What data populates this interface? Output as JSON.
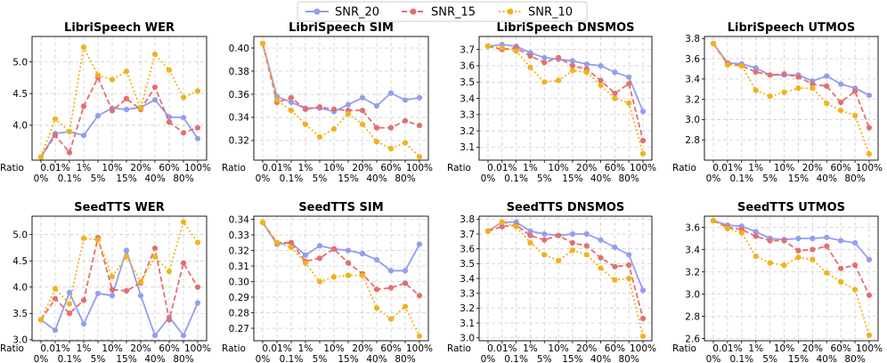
{
  "legend": [
    {
      "name": "SNR_20",
      "color": "#949df0",
      "dash": "solid"
    },
    {
      "name": "SNR_15",
      "color": "#e36f6f",
      "dash": "dashed"
    },
    {
      "name": "SNR_10",
      "color": "#f2b21a",
      "dash": "dotted"
    }
  ],
  "x_categories": [
    "0%",
    "0.01%",
    "0.1%",
    "1%",
    "5%",
    "10%",
    "15%",
    "20%",
    "40%",
    "60%",
    "80%",
    "100%"
  ],
  "x_axis_label": "Ratio",
  "chart_data": [
    {
      "type": "line",
      "title": "LibriSpeech WER",
      "ylim": [
        3.45,
        5.4
      ],
      "yticks": [
        4.0,
        4.5,
        5.0
      ],
      "ytick_labels": [
        "4.0",
        "4.5",
        "5.0"
      ],
      "series": [
        {
          "name": "SNR_20",
          "values": [
            3.5,
            3.87,
            3.9,
            3.84,
            4.15,
            4.27,
            4.25,
            4.28,
            4.4,
            4.13,
            4.12,
            3.79
          ]
        },
        {
          "name": "SNR_15",
          "values": [
            3.5,
            3.84,
            3.57,
            4.3,
            4.75,
            4.23,
            4.42,
            4.25,
            4.6,
            4.05,
            3.88,
            3.96
          ]
        },
        {
          "name": "SNR_10",
          "values": [
            3.5,
            4.1,
            3.9,
            5.23,
            4.79,
            4.72,
            4.85,
            4.27,
            5.12,
            4.87,
            4.44,
            4.54
          ]
        }
      ]
    },
    {
      "type": "line",
      "title": "LibriSpeech SIM",
      "ylim": [
        0.303,
        0.41
      ],
      "yticks": [
        0.32,
        0.34,
        0.36,
        0.38,
        0.4
      ],
      "ytick_labels": [
        "0.32",
        "0.34",
        "0.36",
        "0.38",
        "0.40"
      ],
      "series": [
        {
          "name": "SNR_20",
          "values": [
            0.404,
            0.358,
            0.353,
            0.348,
            0.348,
            0.345,
            0.351,
            0.357,
            0.35,
            0.361,
            0.355,
            0.357
          ]
        },
        {
          "name": "SNR_15",
          "values": [
            0.404,
            0.353,
            0.357,
            0.347,
            0.349,
            0.347,
            0.346,
            0.346,
            0.331,
            0.331,
            0.337,
            0.333
          ]
        },
        {
          "name": "SNR_10",
          "values": [
            0.404,
            0.355,
            0.346,
            0.334,
            0.323,
            0.33,
            0.343,
            0.334,
            0.319,
            0.313,
            0.318,
            0.306
          ]
        }
      ]
    },
    {
      "type": "line",
      "title": "LibriSpeech DNSMOS",
      "ylim": [
        3.02,
        3.78
      ],
      "yticks": [
        3.1,
        3.2,
        3.3,
        3.4,
        3.5,
        3.6,
        3.7
      ],
      "ytick_labels": [
        "3.1",
        "3.2",
        "3.3",
        "3.4",
        "3.5",
        "3.6",
        "3.7"
      ],
      "series": [
        {
          "name": "SNR_20",
          "values": [
            3.72,
            3.73,
            3.72,
            3.68,
            3.65,
            3.64,
            3.63,
            3.61,
            3.6,
            3.56,
            3.53,
            3.32
          ]
        },
        {
          "name": "SNR_15",
          "values": [
            3.72,
            3.7,
            3.71,
            3.66,
            3.62,
            3.65,
            3.6,
            3.58,
            3.51,
            3.43,
            3.49,
            3.14
          ]
        },
        {
          "name": "SNR_10",
          "values": [
            3.72,
            3.71,
            3.69,
            3.59,
            3.5,
            3.51,
            3.57,
            3.56,
            3.48,
            3.4,
            3.37,
            3.06
          ]
        }
      ]
    },
    {
      "type": "line",
      "title": "LibriSpeech UTMOS",
      "ylim": [
        2.6,
        3.82
      ],
      "yticks": [
        2.8,
        3.0,
        3.2,
        3.4,
        3.6,
        3.8
      ],
      "ytick_labels": [
        "2.8",
        "3.0",
        "3.2",
        "3.4",
        "3.6",
        "3.8"
      ],
      "series": [
        {
          "name": "SNR_20",
          "values": [
            3.75,
            3.56,
            3.55,
            3.51,
            3.44,
            3.44,
            3.44,
            3.38,
            3.43,
            3.35,
            3.31,
            3.24
          ]
        },
        {
          "name": "SNR_15",
          "values": [
            3.75,
            3.55,
            3.53,
            3.47,
            3.44,
            3.45,
            3.42,
            3.35,
            3.33,
            3.17,
            3.28,
            2.92
          ]
        },
        {
          "name": "SNR_10",
          "values": [
            3.75,
            3.54,
            3.53,
            3.29,
            3.23,
            3.27,
            3.31,
            3.31,
            3.16,
            3.09,
            3.04,
            2.66
          ]
        }
      ]
    },
    {
      "type": "line",
      "title": "SeedTTS WER",
      "ylim": [
        2.98,
        5.35
      ],
      "yticks": [
        3.0,
        3.5,
        4.0,
        4.5,
        5.0
      ],
      "ytick_labels": [
        "3.0",
        "3.5",
        "4.0",
        "4.5",
        "5.0"
      ],
      "series": [
        {
          "name": "SNR_20",
          "values": [
            3.38,
            3.18,
            3.9,
            3.3,
            3.88,
            3.84,
            4.7,
            3.84,
            3.08,
            3.43,
            3.08,
            3.7
          ]
        },
        {
          "name": "SNR_15",
          "values": [
            3.38,
            3.78,
            3.5,
            3.75,
            4.94,
            3.95,
            3.93,
            4.08,
            4.74,
            3.38,
            4.46,
            4.0
          ]
        },
        {
          "name": "SNR_10",
          "values": [
            3.38,
            3.97,
            3.68,
            4.93,
            4.9,
            4.2,
            4.58,
            4.1,
            4.58,
            4.3,
            5.24,
            4.85
          ]
        }
      ]
    },
    {
      "type": "line",
      "title": "SeedTTS SIM",
      "ylim": [
        0.262,
        0.342
      ],
      "yticks": [
        0.27,
        0.28,
        0.29,
        0.3,
        0.31,
        0.32,
        0.33,
        0.34
      ],
      "ytick_labels": [
        "0.27",
        "0.28",
        "0.29",
        "0.30",
        "0.31",
        "0.32",
        "0.33",
        "0.34"
      ],
      "series": [
        {
          "name": "SNR_20",
          "values": [
            0.338,
            0.324,
            0.325,
            0.317,
            0.323,
            0.321,
            0.32,
            0.318,
            0.314,
            0.307,
            0.307,
            0.324
          ]
        },
        {
          "name": "SNR_15",
          "values": [
            0.338,
            0.325,
            0.325,
            0.313,
            0.315,
            0.321,
            0.312,
            0.305,
            0.295,
            0.296,
            0.299,
            0.291
          ]
        },
        {
          "name": "SNR_10",
          "values": [
            0.338,
            0.325,
            0.322,
            0.312,
            0.3,
            0.303,
            0.304,
            0.304,
            0.283,
            0.276,
            0.284,
            0.265
          ]
        }
      ]
    },
    {
      "type": "line",
      "title": "SeedTTS DNSMOS",
      "ylim": [
        2.98,
        3.82
      ],
      "yticks": [
        3.0,
        3.1,
        3.2,
        3.3,
        3.4,
        3.5,
        3.6,
        3.7,
        3.8
      ],
      "ytick_labels": [
        "3.0",
        "3.1",
        "3.2",
        "3.3",
        "3.4",
        "3.5",
        "3.6",
        "3.7",
        "3.8"
      ],
      "series": [
        {
          "name": "SNR_20",
          "values": [
            3.72,
            3.78,
            3.78,
            3.72,
            3.7,
            3.69,
            3.7,
            3.7,
            3.66,
            3.61,
            3.56,
            3.32
          ]
        },
        {
          "name": "SNR_15",
          "values": [
            3.72,
            3.75,
            3.76,
            3.69,
            3.66,
            3.69,
            3.64,
            3.62,
            3.54,
            3.48,
            3.49,
            3.13
          ]
        },
        {
          "name": "SNR_10",
          "values": [
            3.72,
            3.78,
            3.75,
            3.64,
            3.56,
            3.52,
            3.59,
            3.56,
            3.47,
            3.39,
            3.4,
            3.01
          ]
        }
      ]
    },
    {
      "type": "line",
      "title": "SeedTTS UTMOS",
      "ylim": [
        2.58,
        3.7
      ],
      "yticks": [
        2.6,
        2.8,
        3.0,
        3.2,
        3.4,
        3.6
      ],
      "ytick_labels": [
        "2.6",
        "2.8",
        "3.0",
        "3.2",
        "3.4",
        "3.6"
      ],
      "series": [
        {
          "name": "SNR_20",
          "values": [
            3.66,
            3.62,
            3.61,
            3.56,
            3.5,
            3.49,
            3.5,
            3.5,
            3.51,
            3.48,
            3.46,
            3.31
          ]
        },
        {
          "name": "SNR_15",
          "values": [
            3.66,
            3.6,
            3.58,
            3.52,
            3.48,
            3.48,
            3.39,
            3.4,
            3.43,
            3.23,
            3.26,
            2.99
          ]
        },
        {
          "name": "SNR_10",
          "values": [
            3.66,
            3.59,
            3.55,
            3.34,
            3.28,
            3.26,
            3.33,
            3.31,
            3.19,
            3.11,
            3.04,
            2.63
          ]
        }
      ]
    }
  ]
}
